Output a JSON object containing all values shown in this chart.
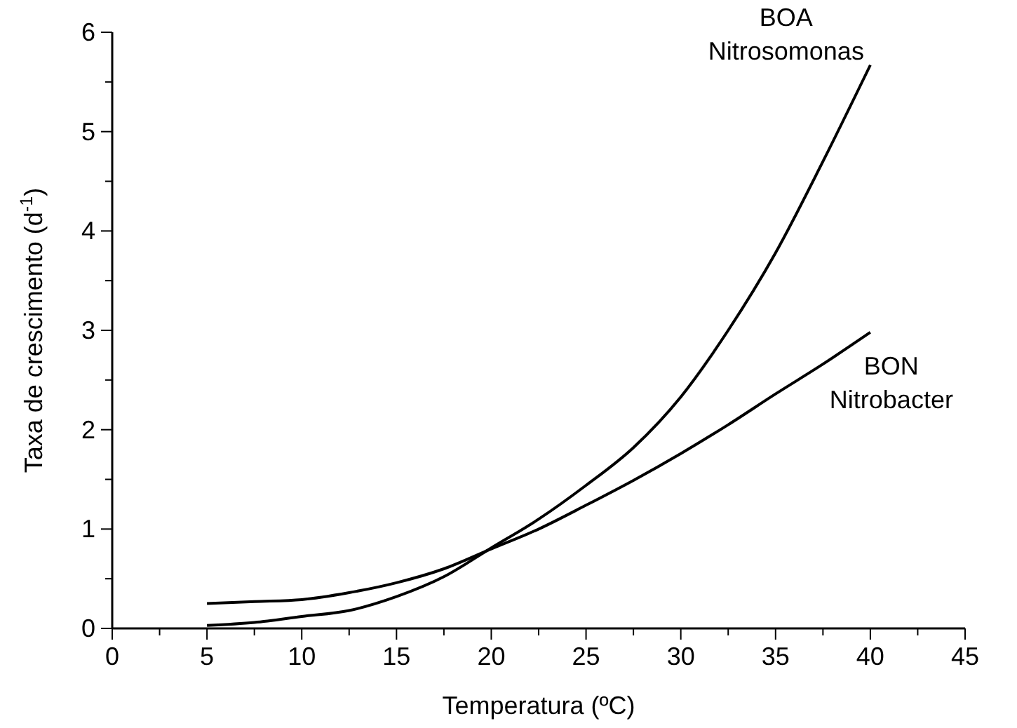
{
  "chart_data": {
    "type": "line",
    "xlabel": "Temperatura (ºC)",
    "ylabel": "Taxa de crescimento (d$^{-1}$)",
    "xlim": [
      0,
      45
    ],
    "ylim": [
      0,
      6
    ],
    "xticks": [
      0,
      {
        "value": 2.5,
        "label": null
      },
      5,
      {
        "value": 7.5,
        "label": null
      },
      10,
      {
        "value": 12.5,
        "label": null
      },
      15,
      {
        "value": 17.5,
        "label": null
      },
      20,
      {
        "value": 22.5,
        "label": null
      },
      25,
      {
        "value": 27.5,
        "label": null
      },
      30,
      {
        "value": 32.5,
        "label": null
      },
      35,
      {
        "value": 37.5,
        "label": null
      },
      40,
      {
        "value": 42.5,
        "label": null
      },
      45
    ],
    "yticks": [
      0,
      {
        "value": 0.5,
        "label": null
      },
      1,
      {
        "value": 1.5,
        "label": null
      },
      2,
      {
        "value": 2.5,
        "label": null
      },
      3,
      {
        "value": 3.5,
        "label": null
      },
      4,
      {
        "value": 4.5,
        "label": null
      },
      5,
      {
        "value": 5.5,
        "label": null
      },
      6
    ],
    "x": [
      5,
      7.5,
      10,
      12.5,
      15,
      17.5,
      20,
      22.5,
      25,
      27.5,
      30,
      32.5,
      35,
      37.5,
      40
    ],
    "series": [
      {
        "name": "BOA Nitrosomonas",
        "color": "#000000",
        "values": [
          0.03,
          0.06,
          0.12,
          0.18,
          0.32,
          0.52,
          0.81,
          1.1,
          1.44,
          1.82,
          2.33,
          3.0,
          3.78,
          4.7,
          5.67
        ]
      },
      {
        "name": "BON Nitrobacter",
        "color": "#000000",
        "values": [
          0.25,
          0.27,
          0.29,
          0.36,
          0.46,
          0.6,
          0.8,
          1.0,
          1.24,
          1.49,
          1.76,
          2.05,
          2.36,
          2.66,
          2.98
        ]
      }
    ],
    "grid": false,
    "legend": false,
    "marker": "none",
    "line_style": "solid"
  }
}
